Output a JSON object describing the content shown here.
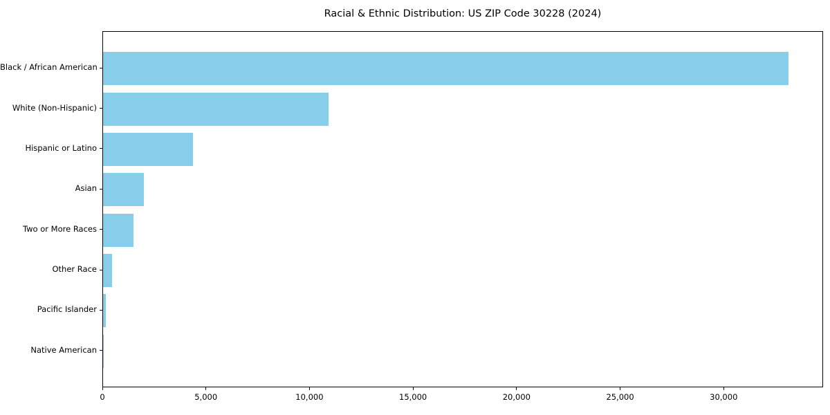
{
  "figure": {
    "title": "Racial & Ethnic Distribution: US ZIP Code 30228 (2024)"
  },
  "chart_data": {
    "type": "bar",
    "orientation": "horizontal",
    "title": "Racial & Ethnic Distribution: US ZIP Code 30228 (2024)",
    "categories": [
      "Black / African American",
      "White (Non-Hispanic)",
      "Hispanic or Latino",
      "Asian",
      "Two or More Races",
      "Other Race",
      "Pacific Islander",
      "Native American"
    ],
    "values": [
      33150,
      10920,
      4360,
      1980,
      1460,
      420,
      150,
      30
    ],
    "xlabel": "",
    "ylabel": "",
    "xlim": [
      0,
      34800
    ],
    "x_ticks": [
      0,
      5000,
      10000,
      15000,
      20000,
      25000,
      30000
    ],
    "x_tick_labels": [
      "0",
      "5,000",
      "10,000",
      "15,000",
      "20,000",
      "25,000",
      "30,000"
    ],
    "bar_color": "#87CEEB",
    "grid": false,
    "legend": null
  }
}
